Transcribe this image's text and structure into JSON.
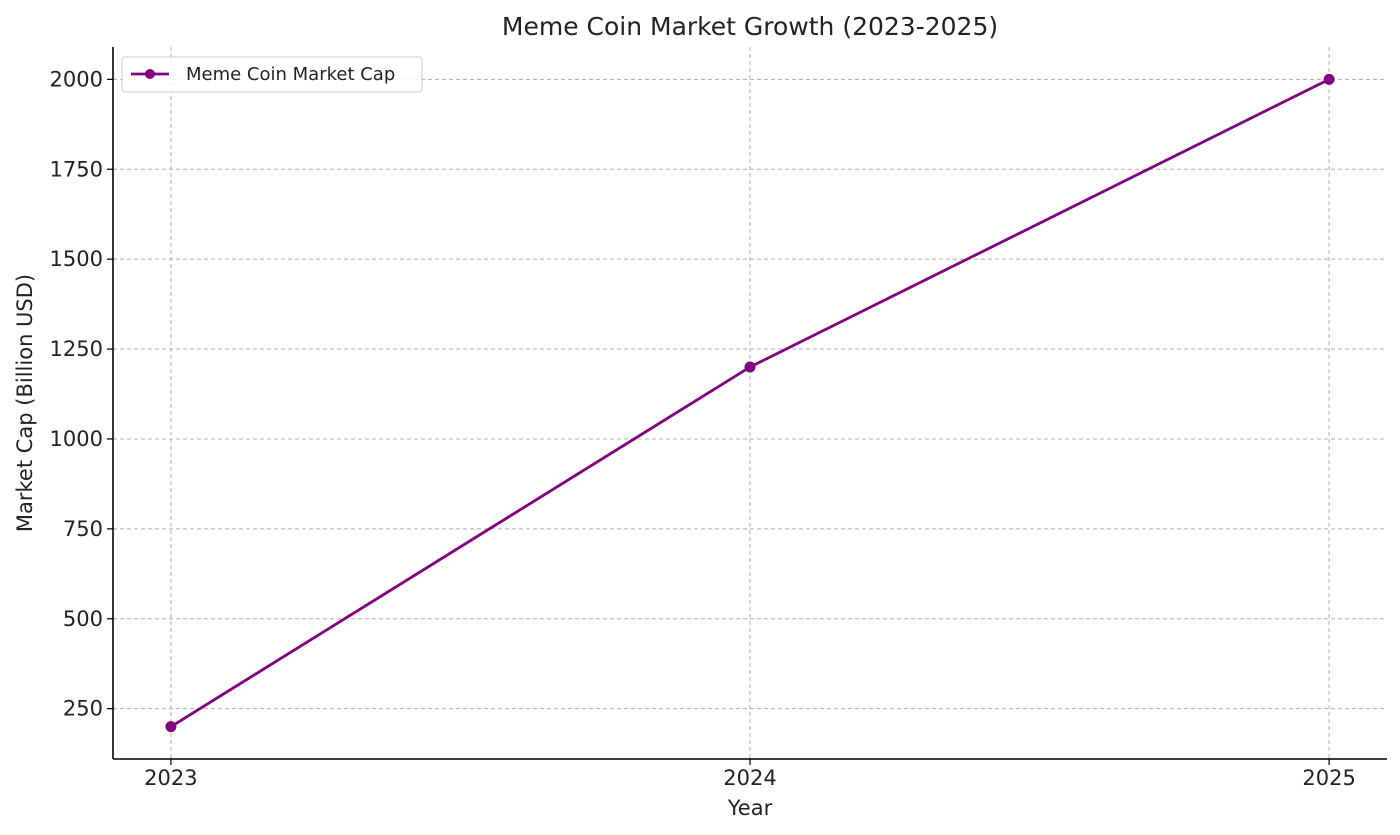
{
  "chart_data": {
    "type": "line",
    "title": "Meme Coin Market Growth (2023-2025)",
    "xlabel": "Year",
    "ylabel": "Market Cap (Billion USD)",
    "categories": [
      "2023",
      "2024",
      "2025"
    ],
    "x": [
      2023,
      2024,
      2025
    ],
    "series": [
      {
        "name": "Meme Coin Market Cap",
        "values": [
          200,
          1200,
          2000
        ],
        "color": "#800080",
        "marker": "circle"
      }
    ],
    "xlim": [
      2022.9,
      2025.1
    ],
    "ylim": [
      110,
      2090
    ],
    "yticks": [
      250,
      500,
      750,
      1000,
      1250,
      1500,
      1750,
      2000
    ],
    "ytick_labels": [
      "250",
      "500",
      "750",
      "1000",
      "1250",
      "1500",
      "1750",
      "2000"
    ],
    "xticks": [
      2023,
      2024,
      2025
    ],
    "xtick_labels": [
      "2023",
      "2024",
      "2025"
    ],
    "grid": true,
    "legend_position": "top-left",
    "colors": {
      "line": "#800080",
      "grid": "#b0b0b0",
      "axis": "#000000",
      "text": "#222222"
    }
  }
}
